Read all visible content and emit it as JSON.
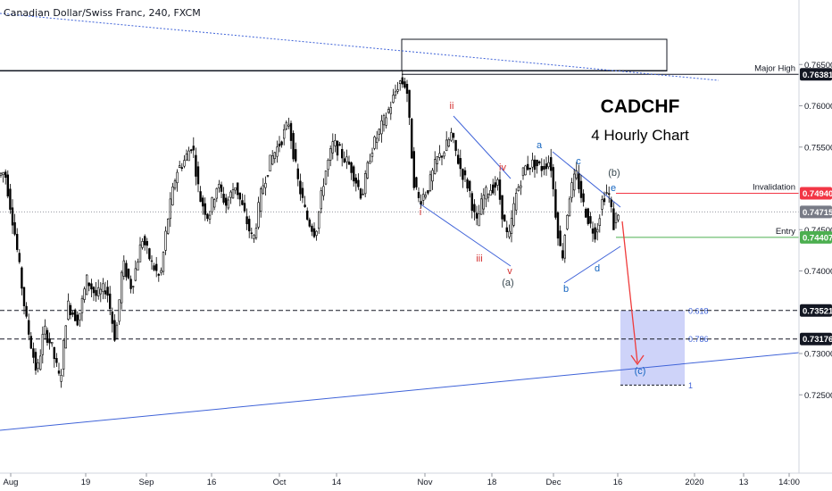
{
  "header": {
    "symbol_title": "Canadian Dollar/Swiss Franc, 240, FXCM"
  },
  "chart_data": {
    "type": "candlestick",
    "title": "CADCHF",
    "subtitle": "4 Hourly Chart",
    "price_axis": {
      "ylim": [
        0.7218,
        0.7676
      ],
      "ticks": [
        {
          "value": 0.765,
          "label": "0.76500"
        },
        {
          "value": 0.76,
          "label": "0.76000"
        },
        {
          "value": 0.755,
          "label": "0.75500"
        },
        {
          "value": 0.745,
          "label": "0.74500"
        },
        {
          "value": 0.74,
          "label": "0.74000"
        },
        {
          "value": 0.73,
          "label": "0.73000"
        },
        {
          "value": 0.725,
          "label": "0.72500"
        }
      ]
    },
    "time_axis": {
      "labels": [
        "Aug",
        "19",
        "Sep",
        "16",
        "Oct",
        "14",
        "Nov",
        "18",
        "Dec",
        "16",
        "2020",
        "13",
        "14:00"
      ]
    },
    "price_levels": [
      {
        "name": "Major High",
        "value": 0.76381,
        "label": "0.76381",
        "line_color": "#131722",
        "badge_color": "#131722"
      },
      {
        "name": "Invalidation",
        "value": 0.7494,
        "label": "0.74940",
        "line_color": "#f23645",
        "badge_color": "#f23645"
      },
      {
        "name": "",
        "value": 0.74715,
        "label": "0.74715",
        "line_color": "#9598a1",
        "badge_color": "#787b86"
      },
      {
        "name": "Entry",
        "value": 0.74407,
        "label": "0.74407",
        "line_color": "#4caf50",
        "badge_color": "#4caf50"
      },
      {
        "name": "",
        "value": 0.73521,
        "label": "0.73521",
        "line_color": "#131722",
        "badge_color": "#131722"
      },
      {
        "name": "",
        "value": 0.73176,
        "label": "0.73176",
        "line_color": "#131722",
        "badge_color": "#131722"
      }
    ],
    "fib_levels": [
      {
        "ratio": "0.618",
        "value": 0.73521
      },
      {
        "ratio": "0.786",
        "value": 0.73176
      },
      {
        "ratio": "1",
        "value": 0.72618
      }
    ],
    "wave_labels": {
      "impulse": [
        "i",
        "ii",
        "iii",
        "iv",
        "v"
      ],
      "corrective": [
        "a",
        "b",
        "c",
        "d",
        "e"
      ],
      "degree": [
        "(a)",
        "(b)",
        "(c)"
      ]
    },
    "colors": {
      "up_candle": "#ffffff",
      "down_candle": "#000000",
      "impulse_label": "#d32f2f",
      "corrective_label": "#1565c0",
      "degree_label": "#37474f",
      "trendline": "#3f63d8",
      "target_zone": "#c5cbf8",
      "projection_arrow": "#ef3b3b",
      "fib_text": "#3f63d8"
    }
  }
}
